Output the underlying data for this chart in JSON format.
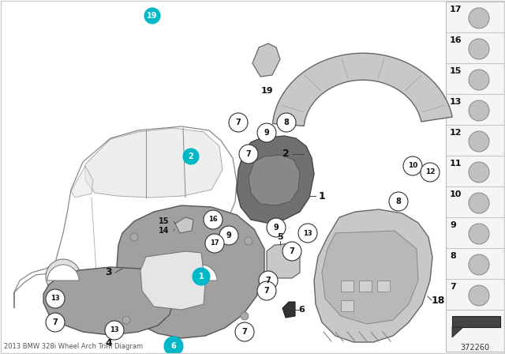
{
  "title": "2013 BMW 328i Wheel Arch Trim Diagram",
  "diagram_number": "372260",
  "bg": "#ffffff",
  "panel_bg": "#f8f8f8",
  "part_color_light": "#c8c8c8",
  "part_color_mid": "#a0a0a0",
  "part_color_dark": "#707070",
  "teal": "#00b8c8",
  "right_items": [
    17,
    16,
    15,
    13,
    12,
    11,
    10,
    9,
    8,
    7
  ]
}
